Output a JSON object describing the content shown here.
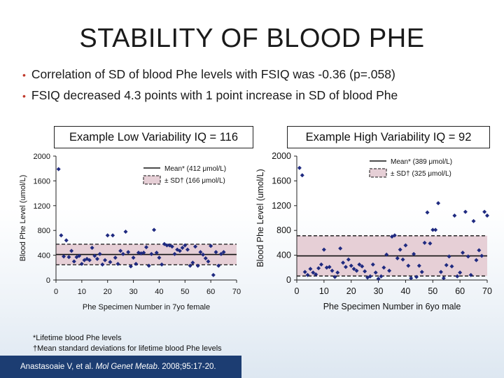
{
  "slide": {
    "title": "STABILITY OF BLOOD PHE",
    "bullets": [
      "Correlation of SD of blood Phe levels with FSIQ was -0.36 (p=.058)",
      "FSIQ decreased 4.3 points with 1 point increase in SD of blood Phe"
    ],
    "footnotes": [
      "*Lifetime blood Phe levels",
      "†Mean standard deviations for lifetime blood Phe levels"
    ],
    "citation": {
      "authors": "Anastasoaie V, et al. ",
      "journal": "Mol Genet Metab",
      "details": ". 2008;95:17-20."
    }
  },
  "colors": {
    "marker": "#1f2a80",
    "band": "#e6cfd6",
    "citation_bg": "#1c3d72"
  },
  "chart_data": [
    {
      "type": "scatter",
      "title": "Example Low Variability IQ = 116",
      "xlabel": "Phe Specimen Number in 7yo female",
      "ylabel": "Blood Phe Level (umol/L)",
      "xlim": [
        0,
        70
      ],
      "ylim": [
        0,
        2000
      ],
      "xticks": [
        0,
        10,
        20,
        30,
        40,
        50,
        60,
        70
      ],
      "yticks": [
        0,
        400,
        800,
        1200,
        1600,
        2000
      ],
      "legend_position": "top-right",
      "legend": [
        "Mean* (412 μmol/L)",
        "± SD† (166 μmol/L)"
      ],
      "mean": 412,
      "sd": 166,
      "points": [
        [
          1,
          1790
        ],
        [
          2,
          720
        ],
        [
          3,
          380
        ],
        [
          4,
          640
        ],
        [
          5,
          370
        ],
        [
          6,
          470
        ],
        [
          7,
          300
        ],
        [
          8,
          370
        ],
        [
          9,
          390
        ],
        [
          10,
          260
        ],
        [
          11,
          320
        ],
        [
          12,
          340
        ],
        [
          13,
          320
        ],
        [
          14,
          520
        ],
        [
          15,
          390
        ],
        [
          16,
          340
        ],
        [
          17,
          420
        ],
        [
          18,
          250
        ],
        [
          19,
          320
        ],
        [
          20,
          720
        ],
        [
          21,
          290
        ],
        [
          22,
          720
        ],
        [
          23,
          360
        ],
        [
          24,
          260
        ],
        [
          25,
          470
        ],
        [
          26,
          420
        ],
        [
          27,
          780
        ],
        [
          28,
          450
        ],
        [
          29,
          220
        ],
        [
          30,
          360
        ],
        [
          31,
          260
        ],
        [
          32,
          440
        ],
        [
          33,
          430
        ],
        [
          34,
          440
        ],
        [
          35,
          530
        ],
        [
          36,
          230
        ],
        [
          37,
          420
        ],
        [
          38,
          810
        ],
        [
          39,
          440
        ],
        [
          40,
          360
        ],
        [
          41,
          250
        ],
        [
          42,
          580
        ],
        [
          43,
          560
        ],
        [
          44,
          560
        ],
        [
          45,
          540
        ],
        [
          46,
          420
        ],
        [
          47,
          490
        ],
        [
          48,
          470
        ],
        [
          49,
          520
        ],
        [
          50,
          560
        ],
        [
          51,
          490
        ],
        [
          52,
          230
        ],
        [
          53,
          280
        ],
        [
          54,
          540
        ],
        [
          55,
          230
        ],
        [
          56,
          450
        ],
        [
          57,
          410
        ],
        [
          58,
          350
        ],
        [
          59,
          300
        ],
        [
          60,
          550
        ],
        [
          61,
          80
        ],
        [
          62,
          450
        ],
        [
          63,
          230
        ],
        [
          64,
          420
        ],
        [
          65,
          450
        ]
      ]
    },
    {
      "type": "scatter",
      "title": "Example High Variability IQ = 92",
      "xlabel": "Phe Specimen Number in 6yo male",
      "ylabel": "Blood Phe Level (umol/L)",
      "xlim": [
        0,
        70
      ],
      "ylim": [
        0,
        2000
      ],
      "xticks": [
        0,
        10,
        20,
        30,
        40,
        50,
        60,
        70
      ],
      "yticks": [
        0,
        400,
        800,
        1200,
        1600,
        2000
      ],
      "legend_position": "top-right",
      "legend": [
        "Mean* (389 μmol/L)",
        "± SD† (325 μmol/L)"
      ],
      "mean": 389,
      "sd": 325,
      "points": [
        [
          1,
          1810
        ],
        [
          2,
          1690
        ],
        [
          3,
          130
        ],
        [
          4,
          80
        ],
        [
          5,
          180
        ],
        [
          6,
          120
        ],
        [
          7,
          90
        ],
        [
          8,
          190
        ],
        [
          9,
          250
        ],
        [
          10,
          490
        ],
        [
          11,
          200
        ],
        [
          12,
          210
        ],
        [
          13,
          150
        ],
        [
          14,
          50
        ],
        [
          15,
          120
        ],
        [
          16,
          510
        ],
        [
          17,
          280
        ],
        [
          18,
          210
        ],
        [
          19,
          330
        ],
        [
          20,
          230
        ],
        [
          21,
          180
        ],
        [
          22,
          150
        ],
        [
          23,
          250
        ],
        [
          24,
          220
        ],
        [
          25,
          140
        ],
        [
          26,
          40
        ],
        [
          27,
          60
        ],
        [
          28,
          250
        ],
        [
          29,
          120
        ],
        [
          30,
          20
        ],
        [
          31,
          60
        ],
        [
          32,
          200
        ],
        [
          33,
          410
        ],
        [
          34,
          150
        ],
        [
          35,
          700
        ],
        [
          36,
          720
        ],
        [
          37,
          350
        ],
        [
          38,
          490
        ],
        [
          39,
          330
        ],
        [
          40,
          560
        ],
        [
          41,
          230
        ],
        [
          42,
          30
        ],
        [
          43,
          420
        ],
        [
          44,
          50
        ],
        [
          45,
          230
        ],
        [
          46,
          130
        ],
        [
          47,
          600
        ],
        [
          48,
          1090
        ],
        [
          49,
          590
        ],
        [
          50,
          810
        ],
        [
          51,
          810
        ],
        [
          52,
          1240
        ],
        [
          53,
          130
        ],
        [
          54,
          30
        ],
        [
          55,
          240
        ],
        [
          56,
          380
        ],
        [
          57,
          220
        ],
        [
          58,
          1040
        ],
        [
          59,
          60
        ],
        [
          60,
          120
        ],
        [
          61,
          440
        ],
        [
          62,
          1100
        ],
        [
          63,
          380
        ],
        [
          64,
          80
        ],
        [
          65,
          950
        ],
        [
          66,
          320
        ],
        [
          67,
          480
        ],
        [
          68,
          390
        ],
        [
          69,
          1100
        ],
        [
          70,
          1040
        ]
      ]
    }
  ]
}
